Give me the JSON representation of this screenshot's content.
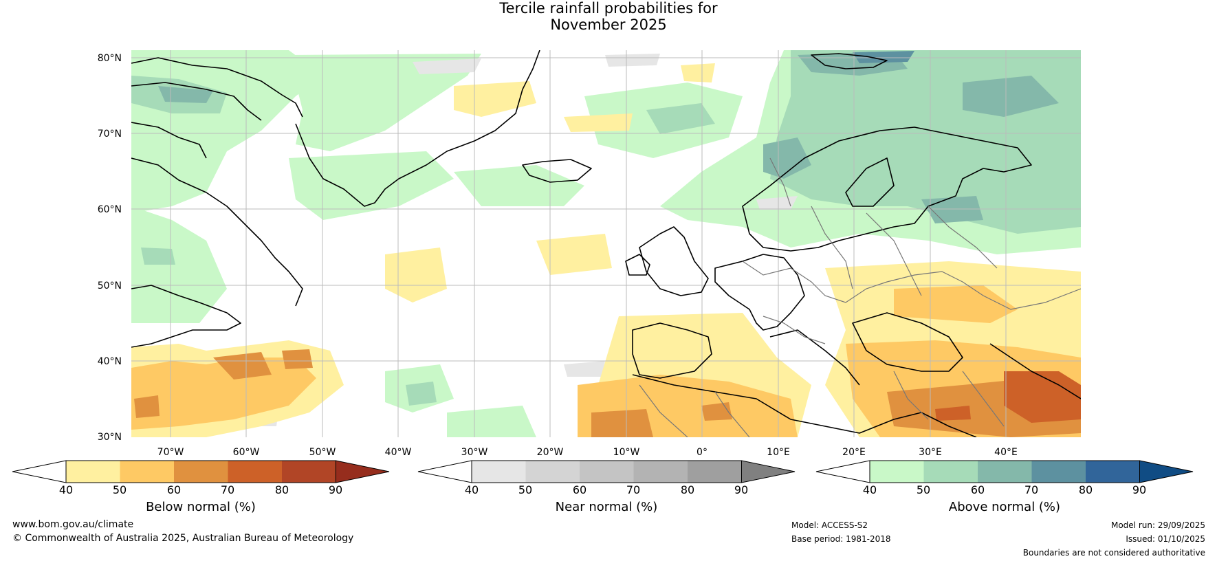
{
  "title": {
    "line1": "Tercile rainfall probabilities for",
    "line2": "November 2025"
  },
  "map": {
    "lat_labels": [
      "80°N",
      "70°N",
      "60°N",
      "50°N",
      "40°N",
      "30°N"
    ],
    "lon_labels": [
      "70°W",
      "60°W",
      "50°W",
      "40°W",
      "30°W",
      "20°W",
      "10°W",
      "0°",
      "10°E",
      "20°E",
      "30°E",
      "40°E"
    ],
    "legend_colors": {
      "below": [
        "#fff0a0",
        "#fec964",
        "#e0913f",
        "#cd6128",
        "#b14526",
        "#962d1d"
      ],
      "near": [
        "#e6e6e6",
        "#d4d4d4",
        "#c4c4c4",
        "#b3b3b3",
        "#9f9f9f",
        "#808080"
      ],
      "above": [
        "#c9f8c8",
        "#a6dbb8",
        "#84b8aa",
        "#5d91a0",
        "#31659a",
        "#104c84"
      ],
      "ocean": "#ffffff",
      "coast": "#000000",
      "border": "#777777"
    }
  },
  "colorbars": [
    {
      "label": "Below normal (%)",
      "ticks": [
        "40",
        "50",
        "60",
        "70",
        "80",
        "90"
      ]
    },
    {
      "label": "Near normal (%)",
      "ticks": [
        "40",
        "50",
        "60",
        "70",
        "80",
        "90"
      ]
    },
    {
      "label": "Above normal (%)",
      "ticks": [
        "40",
        "50",
        "60",
        "70",
        "80",
        "90"
      ]
    }
  ],
  "footer": {
    "website": "www.bom.gov.au/climate",
    "copyright": "© Commonwealth of Australia 2025, Australian Bureau of Meteorology",
    "model": "Model: ACCESS-S2",
    "base_period": "Base period: 1981-2018",
    "model_run": "Model run: 29/09/2025",
    "issued": "Issued: 01/10/2025",
    "disclaimer": "Boundaries are not considered authoritative"
  }
}
